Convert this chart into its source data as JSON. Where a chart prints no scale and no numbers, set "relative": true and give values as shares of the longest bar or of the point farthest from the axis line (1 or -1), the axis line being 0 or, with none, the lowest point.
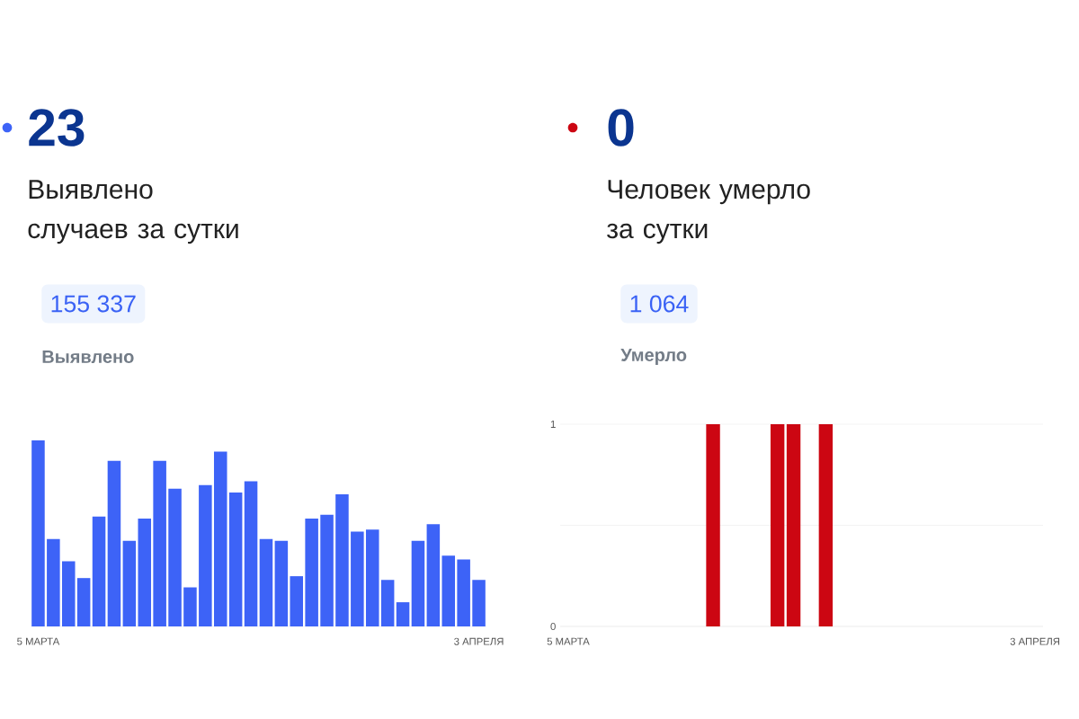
{
  "chart_data": [
    {
      "type": "bar",
      "title": "23",
      "subtitle": "Выявлено случаев за сутки",
      "annotations": [
        "155 337",
        "Выявлено"
      ],
      "relative": true,
      "categories": [
        "5 МАРТА",
        null,
        null,
        null,
        null,
        null,
        null,
        null,
        null,
        null,
        null,
        null,
        null,
        null,
        null,
        null,
        null,
        null,
        null,
        null,
        null,
        null,
        null,
        null,
        null,
        null,
        null,
        null,
        null,
        "3 АПРЕЛЯ"
      ],
      "series": [
        {
          "color": "#3d63f7",
          "values": [
            1,
            0.47,
            0.35,
            0.26,
            0.59,
            0.89,
            0.46,
            0.58,
            0.89,
            0.74,
            0.21,
            0.76,
            0.94,
            0.72,
            0.78,
            0.47,
            0.46,
            0.27,
            0.58,
            0.6,
            0.71,
            0.51,
            0.52,
            0.25,
            0.13,
            0.46,
            0.55,
            0.38,
            0.36,
            0.25
          ]
        }
      ]
    },
    {
      "type": "bar",
      "title": "0",
      "subtitle": "Человек умерло за сутки",
      "annotations": [
        "1 064",
        "Умерло"
      ],
      "ylim": [
        0,
        1
      ],
      "yticks": [
        0,
        {
          "value": 0.5,
          "label": null
        },
        1
      ],
      "grid": "y",
      "categories": [
        "5 МАРТА",
        null,
        null,
        null,
        null,
        null,
        null,
        null,
        null,
        null,
        null,
        null,
        null,
        null,
        null,
        null,
        null,
        null,
        null,
        null,
        null,
        null,
        null,
        null,
        null,
        null,
        null,
        null,
        null,
        "3 АПРЕЛЯ"
      ],
      "series": [
        {
          "color": "#cc0612",
          "values": [
            0,
            0,
            0,
            0,
            0,
            0,
            0,
            0,
            0,
            1,
            0,
            0,
            0,
            1,
            1,
            0,
            1,
            0,
            0,
            0,
            0,
            0,
            0,
            0,
            0,
            0,
            0,
            0,
            0,
            0
          ]
        }
      ]
    }
  ]
}
